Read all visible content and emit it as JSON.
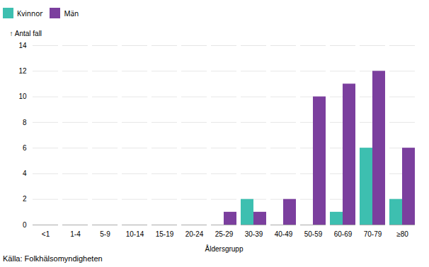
{
  "chart_data": {
    "type": "bar",
    "categories": [
      "<1",
      "1-4",
      "5-9",
      "10-14",
      "15-19",
      "20-24",
      "25-29",
      "30-39",
      "40-49",
      "50-59",
      "60-69",
      "70-79",
      "≥80"
    ],
    "series": [
      {
        "name": "Kvinnor",
        "color": "#3DBFB0",
        "values": [
          0,
          0,
          0,
          0,
          0,
          0,
          0,
          2,
          0,
          0,
          1,
          6,
          2
        ]
      },
      {
        "name": "Män",
        "color": "#7B3F9E",
        "values": [
          0,
          0,
          0,
          0,
          0,
          0,
          1,
          1,
          2,
          10,
          11,
          12,
          6
        ]
      }
    ],
    "ylabel": "Antal fall",
    "xlabel": "Åldersgrupp",
    "caption": "Källa: Folkhälsomyndigheten",
    "ylim": [
      0,
      14
    ],
    "yticks": [
      0,
      2,
      4,
      6,
      8,
      10,
      12,
      14
    ],
    "grid": true,
    "legend": "top"
  }
}
